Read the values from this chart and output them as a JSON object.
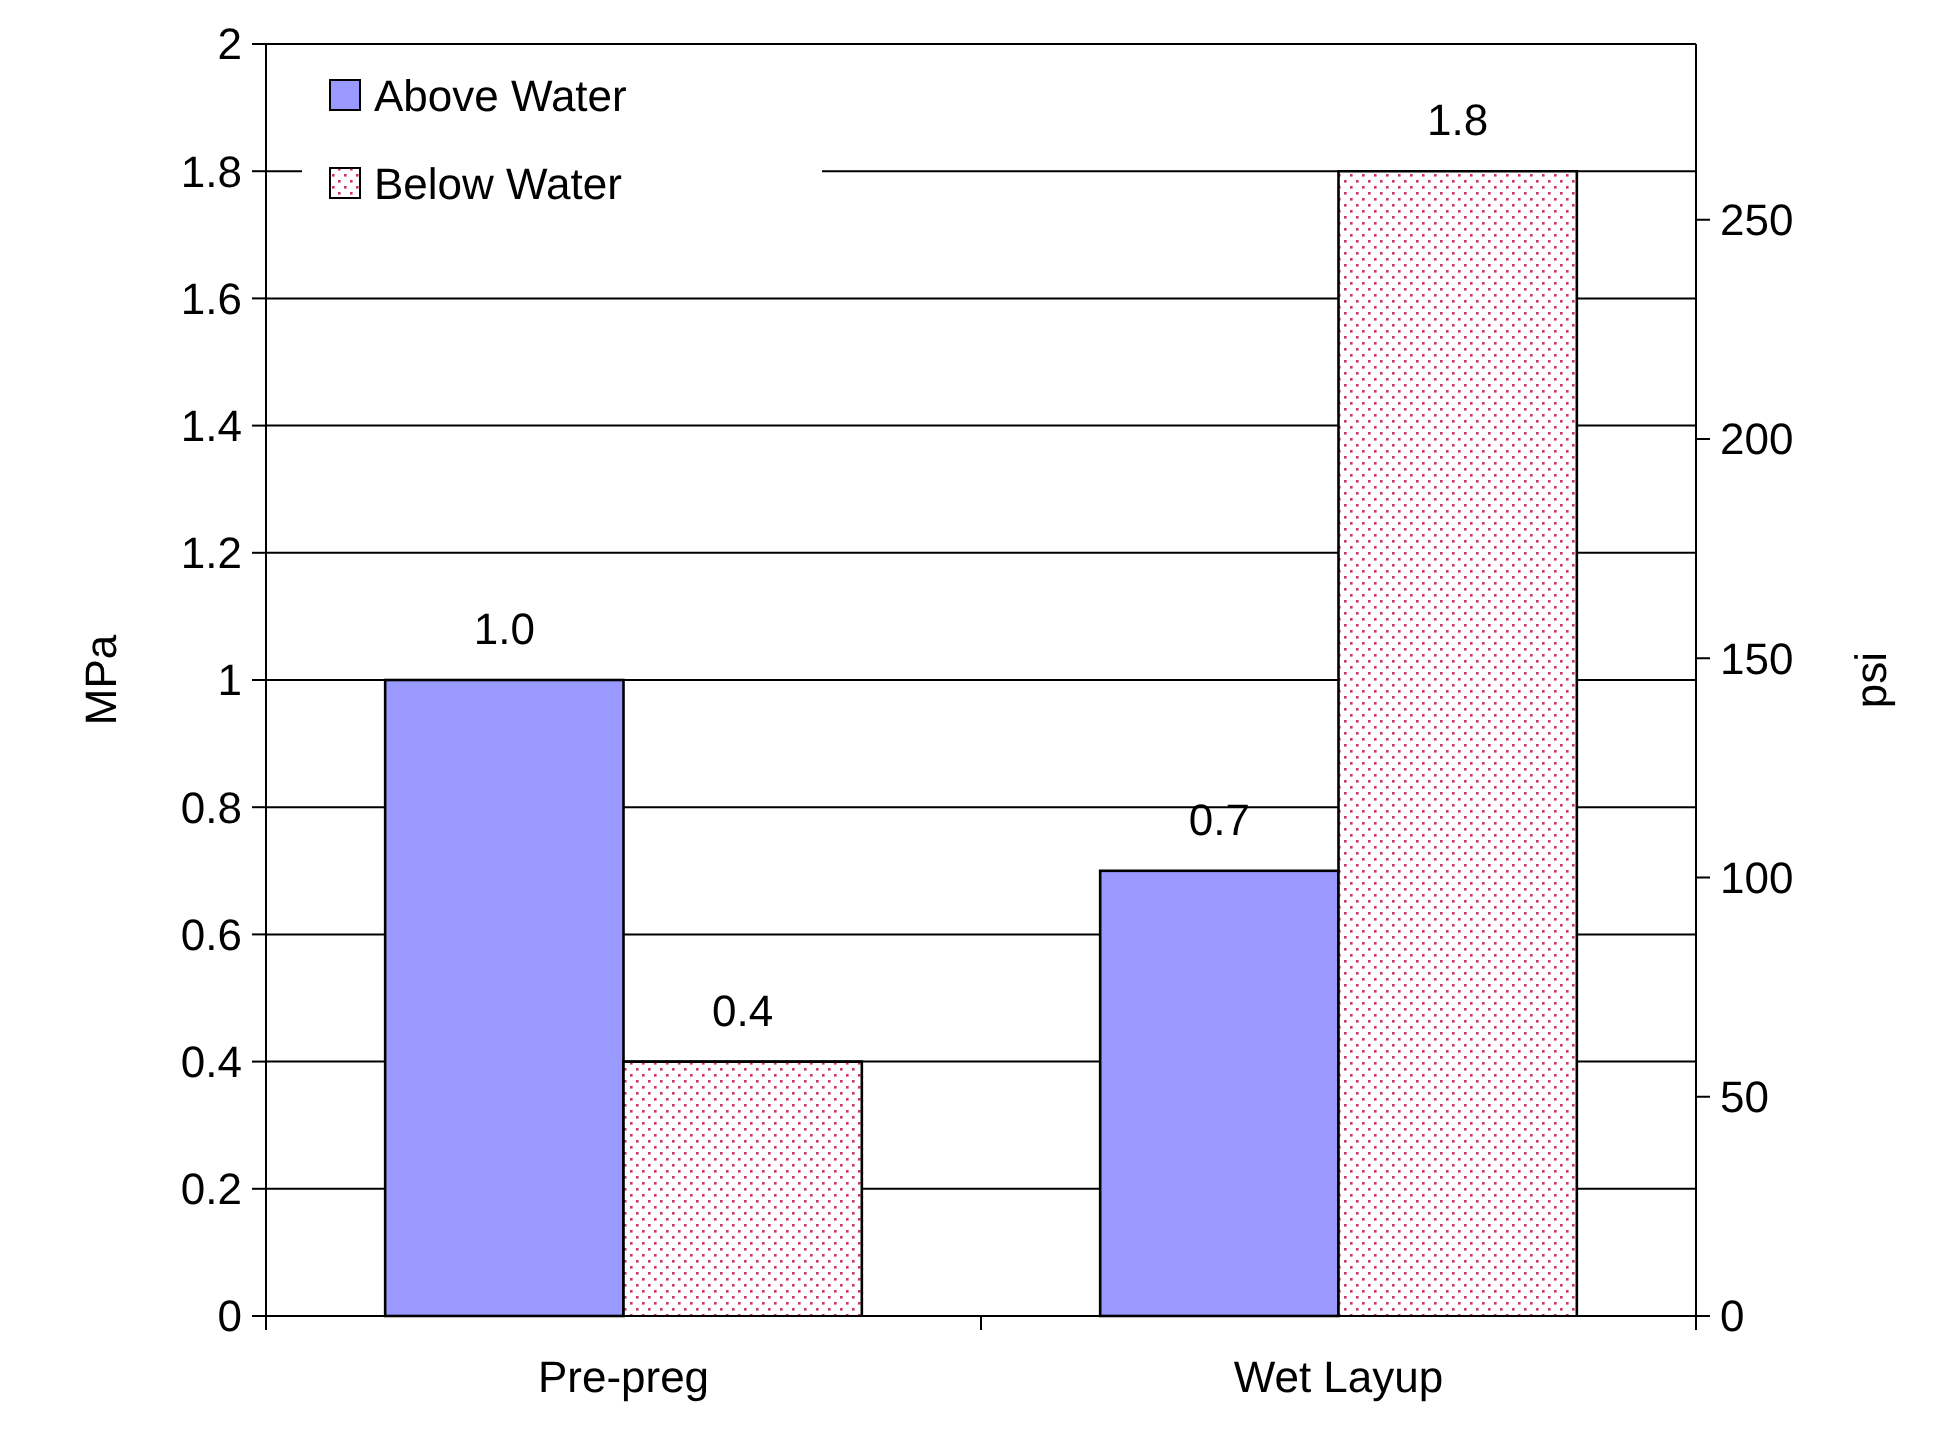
{
  "chart_data": {
    "type": "bar",
    "ylabel": "MPa",
    "y2label": "psi",
    "categories": [
      "Pre-preg",
      "Wet Layup"
    ],
    "series": [
      {
        "name": "Above Water",
        "color": "#9999ff",
        "values": [
          1.0,
          0.7
        ],
        "value_labels": [
          "1.0",
          "0.7"
        ]
      },
      {
        "name": "Below Water",
        "color": "#cc3366",
        "values": [
          0.4,
          1.8
        ],
        "value_labels": [
          "0.4",
          "1.8"
        ]
      }
    ],
    "ylim": [
      0,
      2
    ],
    "yticks": [
      0,
      0.2,
      0.4,
      0.6,
      0.8,
      1,
      1.2,
      1.4,
      1.6,
      1.8,
      2
    ],
    "y2lim": [
      0,
      290.08
    ],
    "y2ticks": [
      0,
      50,
      100,
      150,
      200,
      250
    ],
    "grid": "y",
    "legend": "top left"
  }
}
